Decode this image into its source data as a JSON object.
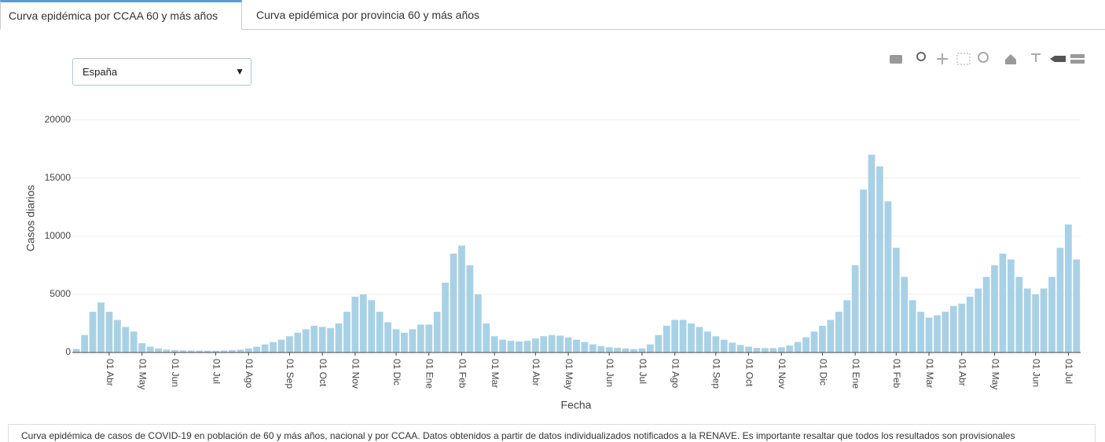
{
  "tabs": [
    "Curva epidémica por CCAA 60 y más años",
    "Curva epidémica por provincia 60 y más años"
  ],
  "selector": "España",
  "chart_data": {
    "type": "bar",
    "y_label": "Casos diarios",
    "x_label": "Fecha",
    "color": "#a9d1e6",
    "categories": [
      null,
      null,
      null,
      null,
      "01 Abr",
      null,
      null,
      null,
      "01 May",
      null,
      null,
      null,
      "01 Jun",
      null,
      null,
      null,
      null,
      "01 Jul",
      null,
      null,
      null,
      "01 Ago",
      null,
      null,
      null,
      null,
      "01 Sep",
      null,
      null,
      null,
      "01 Oct",
      null,
      null,
      null,
      "01 Nov",
      null,
      null,
      null,
      null,
      "01 Dic",
      null,
      null,
      null,
      "01 Ene",
      null,
      null,
      null,
      "01 Feb",
      null,
      null,
      null,
      "01 Mar",
      null,
      null,
      null,
      null,
      "01 Abr",
      null,
      null,
      null,
      "01 May",
      null,
      null,
      null,
      null,
      "01 Jun",
      null,
      null,
      null,
      "01 Jul",
      null,
      null,
      null,
      "01 Ago",
      null,
      null,
      null,
      null,
      "01 Sep",
      null,
      null,
      null,
      "01 Oct",
      null,
      null,
      null,
      "01 Nov",
      null,
      null,
      null,
      null,
      "01 Dic",
      null,
      null,
      null,
      "01 Ene",
      null,
      null,
      null,
      null,
      "01 Feb",
      null,
      null,
      null,
      "01 Mar",
      null,
      null,
      null,
      "01 Abr",
      null,
      null,
      null,
      "01 May",
      null,
      null,
      null,
      null,
      "01 Jun",
      null,
      null,
      null,
      "01 Jul",
      null
    ],
    "values": [
      300,
      1500,
      3500,
      4300,
      3500,
      2800,
      2200,
      1800,
      800,
      500,
      350,
      250,
      200,
      180,
      170,
      160,
      150,
      150,
      170,
      200,
      250,
      350,
      500,
      700,
      900,
      1100,
      1400,
      1700,
      2000,
      2300,
      2200,
      2100,
      2500,
      3500,
      4800,
      5000,
      4500,
      3500,
      2600,
      2000,
      1700,
      2000,
      2400,
      2400,
      3500,
      6000,
      8500,
      9200,
      7500,
      5000,
      2500,
      1400,
      1100,
      1000,
      950,
      1000,
      1200,
      1400,
      1500,
      1450,
      1300,
      1100,
      900,
      700,
      550,
      450,
      400,
      350,
      300,
      350,
      700,
      1500,
      2300,
      2800,
      2800,
      2500,
      2200,
      1800,
      1400,
      1100,
      850,
      650,
      500,
      400,
      380,
      380,
      450,
      600,
      900,
      1300,
      1800,
      2300,
      2800,
      3500,
      4500,
      7500,
      14000,
      17000,
      16000,
      13000,
      9000,
      6500,
      4500,
      3500,
      3000,
      3200,
      3500,
      4000,
      4200,
      4800,
      5500,
      6500,
      7500,
      8500,
      8000,
      6500,
      5500,
      5000,
      5500,
      6500,
      9000,
      11000,
      8000
    ],
    "ylim": [
      0,
      22000
    ],
    "yticks": [
      0,
      5000,
      10000,
      15000,
      20000
    ],
    "grid": true
  },
  "caption": "Curva epidémica de casos de COVID-19 en población de 60 y más años, nacional y por CCAA. Datos obtenidos a partir de datos individualizados notificados a la RENAVE. Es importante resaltar que todos los resultados son provisionales"
}
